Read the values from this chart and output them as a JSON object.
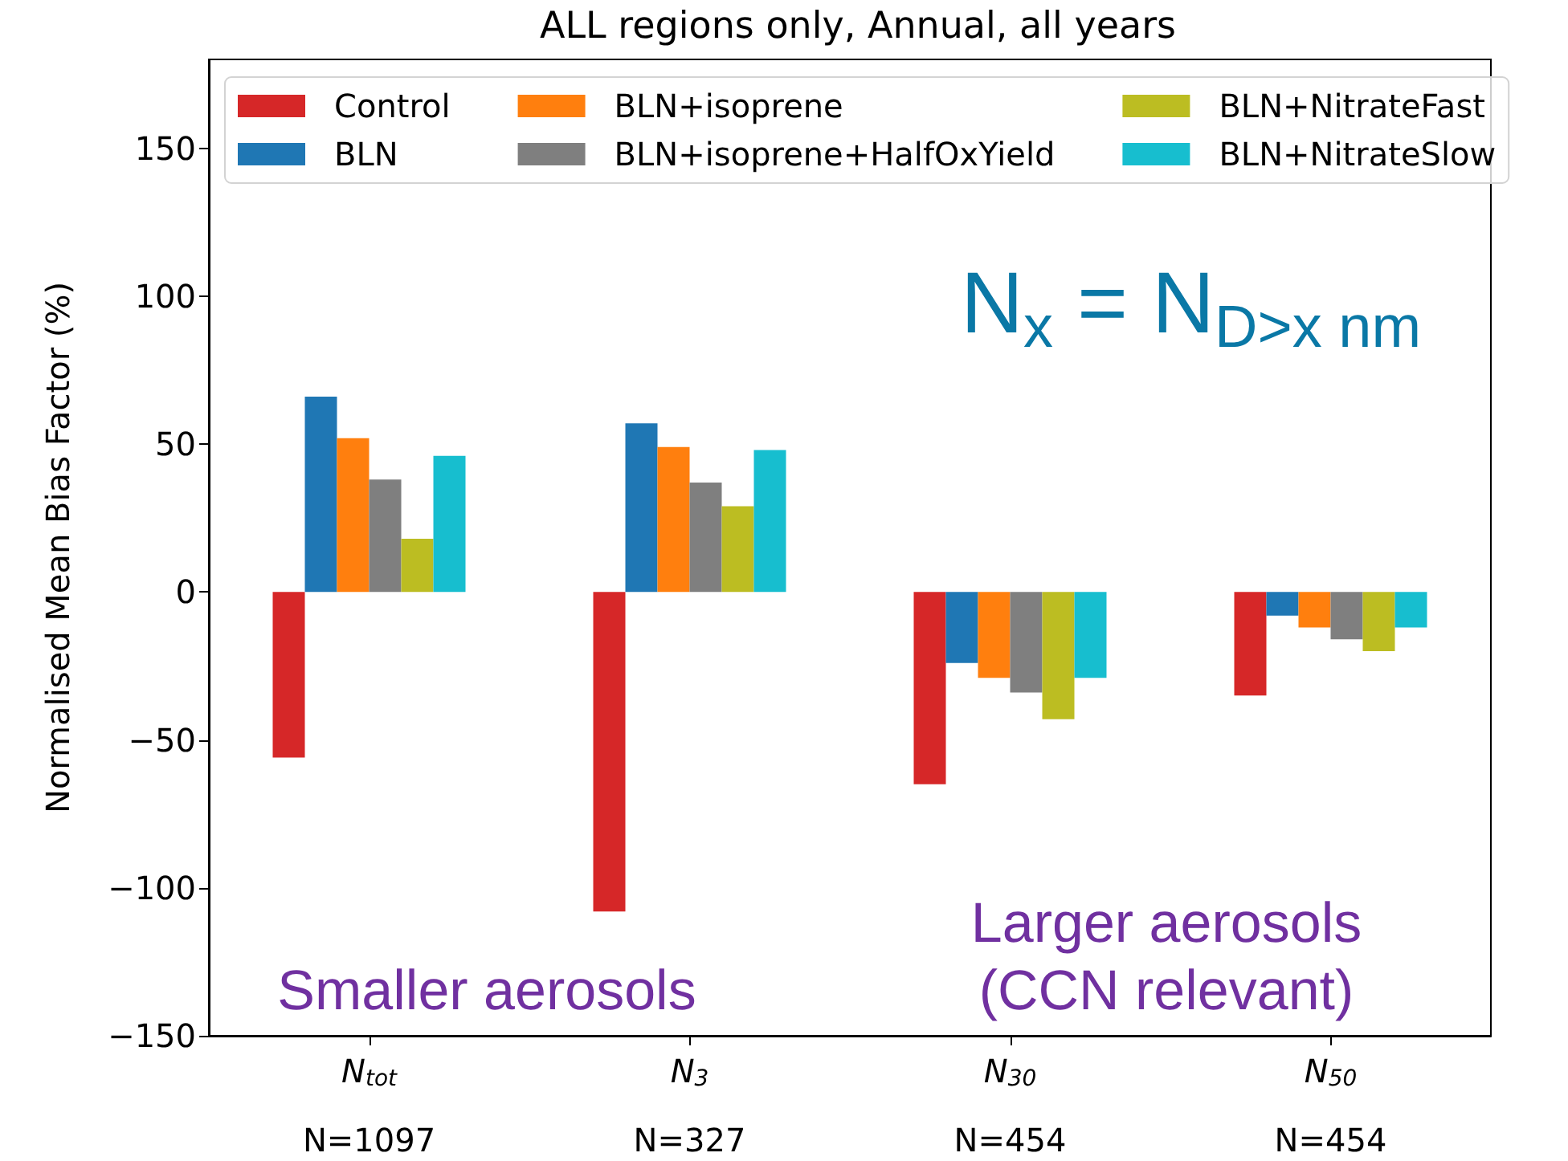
{
  "chart_data": {
    "type": "bar",
    "title": "ALL regions only, Annual, all years",
    "ylabel": "Normalised Mean Bias Factor (%)",
    "categories": [
      "N$_{tot}$\nN=1097",
      "N$_{3}$\nN=327",
      "N$_{30}$\nN=454",
      "N$_{50}$\nN=454"
    ],
    "series": [
      {
        "name": "Control",
        "color": "#d62728",
        "values": [
          -56,
          -108,
          -65,
          -35
        ]
      },
      {
        "name": "BLN",
        "color": "#1f77b4",
        "values": [
          66,
          57,
          -24,
          -8
        ]
      },
      {
        "name": "BLN+isoprene",
        "color": "#ff7f0e",
        "values": [
          52,
          49,
          -29,
          -12
        ]
      },
      {
        "name": "BLN+isoprene+HalfOxYield",
        "color": "#7f7f7f",
        "values": [
          38,
          37,
          -34,
          -16
        ]
      },
      {
        "name": "BLN+NitrateFast",
        "color": "#bcbd22",
        "values": [
          18,
          29,
          -43,
          -20
        ]
      },
      {
        "name": "BLN+NitrateSlow",
        "color": "#17becf",
        "values": [
          46,
          48,
          -29,
          -12
        ]
      }
    ],
    "ylim": [
      -150,
      180
    ],
    "yticks": [
      -150,
      -100,
      -50,
      0,
      50,
      100,
      150
    ],
    "grid": false,
    "legend": "top",
    "annotations": [
      "N$_{x}$ = N$_{D>x nm}$",
      "Smaller aerosols",
      "Larger aerosols\n(CCN relevant)"
    ]
  }
}
